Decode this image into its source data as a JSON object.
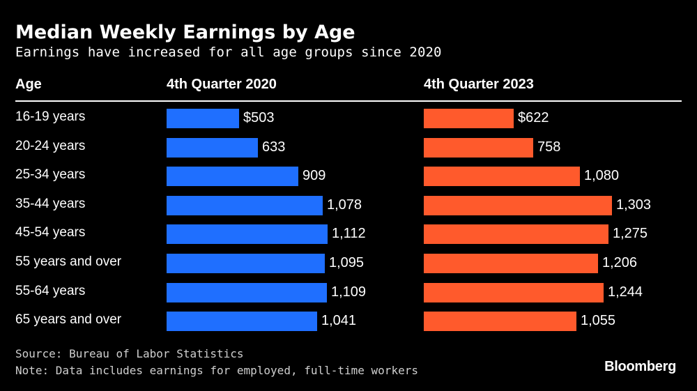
{
  "chart_data": {
    "type": "bar",
    "orientation": "horizontal",
    "title": "Median Weekly Earnings by Age",
    "subtitle": "Earnings have increased for all age groups since 2020",
    "category_header": "Age",
    "categories": [
      "16-19 years",
      "20-24 years",
      "25-34 years",
      "35-44 years",
      "45-54 years",
      "55 years and over",
      "55-64 years",
      "65 years and over"
    ],
    "series": [
      {
        "name": "4th Quarter 2020",
        "color": "#1f6fff",
        "values": [
          503,
          633,
          909,
          1078,
          1112,
          1095,
          1109,
          1041
        ],
        "labels": [
          "$503",
          "633",
          "909",
          "1,078",
          "1,112",
          "1,095",
          "1,109",
          "1,041"
        ]
      },
      {
        "name": "4th Quarter 2023",
        "color": "#ff5a2c",
        "values": [
          622,
          758,
          1080,
          1303,
          1275,
          1206,
          1244,
          1055
        ],
        "labels": [
          "$622",
          "758",
          "1,080",
          "1,303",
          "1,275",
          "1,206",
          "1,244",
          "1,055"
        ]
      }
    ],
    "xlim": [
      0,
      1300
    ],
    "grid": false,
    "legend": "none"
  },
  "source": "Source: Bureau of Labor Statistics",
  "note": "Note: Data includes earnings for employed, full-time workers",
  "brand": "Bloomberg"
}
